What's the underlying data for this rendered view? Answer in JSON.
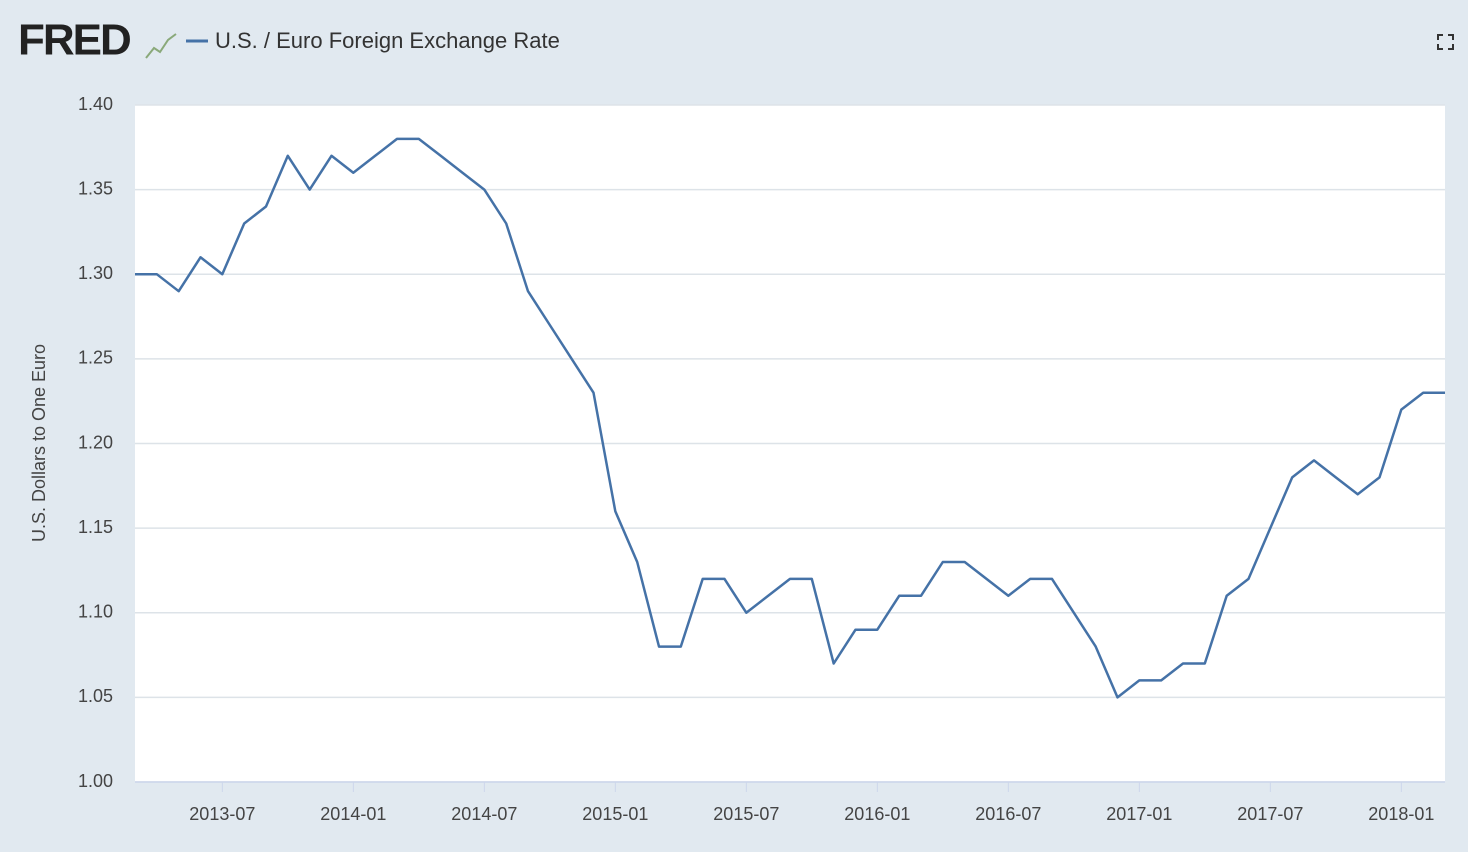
{
  "chart_data": {
    "type": "line",
    "logo": "FRED",
    "title": "U.S. / Euro Foreign Exchange Rate",
    "y_label": "U.S. Dollars to One Euro",
    "x": [
      "2013-03",
      "2013-04",
      "2013-05",
      "2013-06",
      "2013-07",
      "2013-08",
      "2013-09",
      "2013-10",
      "2013-11",
      "2013-12",
      "2014-01",
      "2014-02",
      "2014-03",
      "2014-04",
      "2014-05",
      "2014-06",
      "2014-07",
      "2014-08",
      "2014-09",
      "2014-10",
      "2014-11",
      "2014-12",
      "2015-01",
      "2015-02",
      "2015-03",
      "2015-04",
      "2015-05",
      "2015-06",
      "2015-07",
      "2015-08",
      "2015-09",
      "2015-10",
      "2015-11",
      "2015-12",
      "2016-01",
      "2016-02",
      "2016-03",
      "2016-04",
      "2016-05",
      "2016-06",
      "2016-07",
      "2016-08",
      "2016-09",
      "2016-10",
      "2016-11",
      "2016-12",
      "2017-01",
      "2017-02",
      "2017-03",
      "2017-04",
      "2017-05",
      "2017-06",
      "2017-07",
      "2017-08",
      "2017-09",
      "2017-10",
      "2017-11",
      "2017-12",
      "2018-01",
      "2018-02",
      "2018-03"
    ],
    "series": [
      {
        "name": "U.S. / Euro Foreign Exchange Rate",
        "color": "#4572a7",
        "values": [
          1.3,
          1.3,
          1.29,
          1.31,
          1.3,
          1.33,
          1.34,
          1.37,
          1.35,
          1.37,
          1.36,
          1.37,
          1.38,
          1.38,
          1.37,
          1.36,
          1.35,
          1.33,
          1.29,
          1.27,
          1.25,
          1.23,
          1.16,
          1.13,
          1.08,
          1.08,
          1.12,
          1.12,
          1.1,
          1.11,
          1.12,
          1.12,
          1.07,
          1.09,
          1.09,
          1.11,
          1.11,
          1.13,
          1.13,
          1.12,
          1.11,
          1.12,
          1.12,
          1.1,
          1.08,
          1.05,
          1.06,
          1.06,
          1.07,
          1.07,
          1.11,
          1.12,
          1.15,
          1.18,
          1.19,
          1.18,
          1.17,
          1.18,
          1.22,
          1.23,
          1.23
        ]
      }
    ],
    "xlim": [
      "2013-03",
      "2018-03"
    ],
    "xticks": [
      "2013-07",
      "2014-01",
      "2014-07",
      "2015-01",
      "2015-07",
      "2016-01",
      "2016-07",
      "2017-01",
      "2017-07",
      "2018-01"
    ],
    "ylim": [
      1.0,
      1.4
    ],
    "yticks": [
      {
        "value": 1.0,
        "label": "1.00"
      },
      1.05,
      {
        "value": 1.1,
        "label": "1.10"
      },
      1.15,
      {
        "value": 1.2,
        "label": "1.20"
      },
      1.25,
      {
        "value": 1.3,
        "label": "1.30"
      },
      1.35,
      {
        "value": 1.4,
        "label": "1.40"
      }
    ],
    "grid": true
  }
}
